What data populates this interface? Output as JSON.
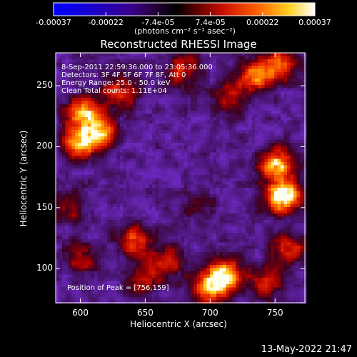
{
  "chart_data": {
    "type": "heatmap",
    "title": "Reconstructed RHESSI Image",
    "xlabel": "Heliocentric X (arcsec)",
    "ylabel": "Heliocentric Y (arcsec)",
    "xlim": [
      581,
      773
    ],
    "ylim": [
      72,
      277
    ],
    "x_ticks": [
      600,
      650,
      700,
      750
    ],
    "y_ticks": [
      100,
      150,
      200,
      250
    ],
    "info_lines": [
      "8-Sep-2011 22:59:36.000 to 23:05:36.000",
      "Detectors: 3F 4F 5F 6F 7F 8F, Att 0",
      "Energy Range: 25.0 - 50.0 keV",
      "Clean     Total counts: 1.11E+04"
    ],
    "peak_text": "Position of Peak = [756,159]",
    "peak_position": [
      756,
      159
    ],
    "colorbar": {
      "ticks": [
        "-0.00037",
        "-0.00022",
        "-7.4e-05",
        "7.4e-05",
        "0.00022",
        "0.00037"
      ],
      "unit_label": "(photons cm⁻² s⁻¹ asec⁻²)",
      "range": [
        -0.00037,
        0.00037
      ]
    },
    "sources": [
      {
        "x": 603,
        "y": 228,
        "amplitude": 1.0
      },
      {
        "x": 598,
        "y": 203,
        "amplitude": 0.85
      },
      {
        "x": 615,
        "y": 210,
        "amplitude": 0.9
      },
      {
        "x": 630,
        "y": 245,
        "amplitude": 0.6
      },
      {
        "x": 680,
        "y": 263,
        "amplitude": 0.55
      },
      {
        "x": 735,
        "y": 258,
        "amplitude": 0.8
      },
      {
        "x": 754,
        "y": 268,
        "amplitude": 0.7
      },
      {
        "x": 756,
        "y": 159,
        "amplitude": 1.3
      },
      {
        "x": 752,
        "y": 185,
        "amplitude": 1.0
      },
      {
        "x": 715,
        "y": 240,
        "amplitude": 0.45
      },
      {
        "x": 712,
        "y": 95,
        "amplitude": 1.1
      },
      {
        "x": 700,
        "y": 85,
        "amplitude": 0.9
      },
      {
        "x": 643,
        "y": 123,
        "amplitude": 0.65
      },
      {
        "x": 666,
        "y": 105,
        "amplitude": 0.55
      },
      {
        "x": 600,
        "y": 108,
        "amplitude": 0.45
      },
      {
        "x": 592,
        "y": 150,
        "amplitude": 0.35
      },
      {
        "x": 760,
        "y": 115,
        "amplitude": 0.55
      },
      {
        "x": 743,
        "y": 88,
        "amplitude": 0.45
      },
      {
        "x": 648,
        "y": 90,
        "amplitude": 0.4
      },
      {
        "x": 690,
        "y": 150,
        "amplitude": 0.25
      }
    ],
    "grid": false,
    "colormap": "rainbow-ish black-blue-purple-red-orange-yellow-white"
  },
  "timestamp": "13-May-2022 21:47"
}
